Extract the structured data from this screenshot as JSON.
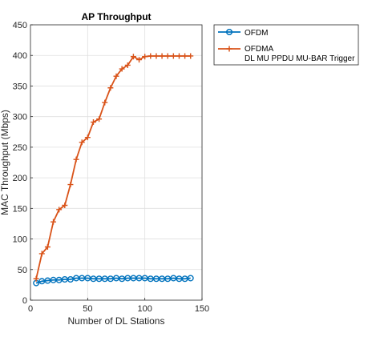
{
  "chart_data": {
    "type": "line",
    "title": "AP Throughput",
    "xlabel": "Number of DL Stations",
    "ylabel": "MAC Throughput (Mbps)",
    "xlim": [
      0,
      150
    ],
    "ylim": [
      0,
      450
    ],
    "xticks": [
      0,
      50,
      100,
      150
    ],
    "yticks": [
      0,
      50,
      100,
      150,
      200,
      250,
      300,
      350,
      400,
      450
    ],
    "grid": true,
    "legend_position": "outside-top-right",
    "x": [
      5,
      10,
      15,
      20,
      25,
      30,
      35,
      40,
      45,
      50,
      55,
      60,
      65,
      70,
      75,
      80,
      85,
      90,
      95,
      100,
      105,
      110,
      115,
      120,
      125,
      130,
      135,
      140
    ],
    "series": [
      {
        "name": "OFDM",
        "color": "#0072BD",
        "marker": "circle",
        "values": [
          28,
          31,
          32,
          33,
          33,
          34,
          34,
          36,
          36,
          36,
          35,
          35,
          35,
          35,
          36,
          35,
          36,
          36,
          36,
          36,
          35,
          35,
          35,
          35,
          36,
          35,
          35,
          36
        ]
      },
      {
        "name": "OFDMA",
        "name_line2": "DL MU PPDU MU-BAR Trigger",
        "color": "#D95319",
        "marker": "plus",
        "values": [
          35,
          76,
          87,
          128,
          148,
          155,
          189,
          230,
          258,
          266,
          291,
          296,
          323,
          347,
          366,
          378,
          384,
          398,
          393,
          398,
          399,
          399,
          399,
          399,
          399,
          399,
          399,
          399
        ]
      }
    ]
  }
}
